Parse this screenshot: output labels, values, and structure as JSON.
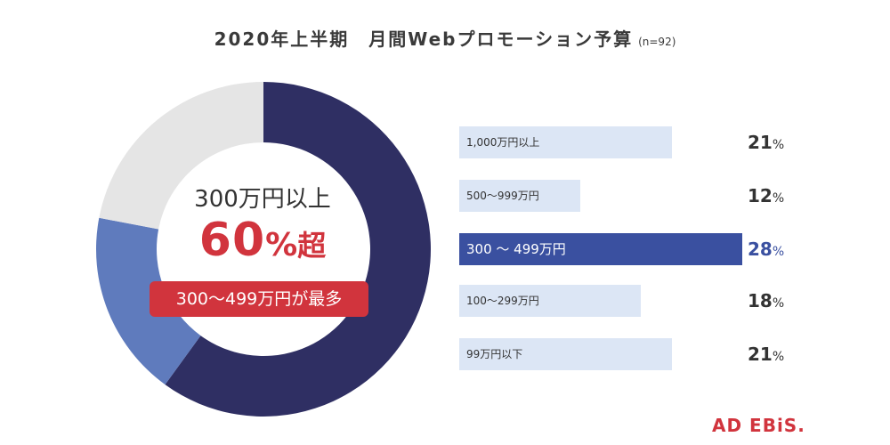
{
  "title": "2020年上半期　月間Webプロモーション予算",
  "title_note": "(n=92)",
  "center": {
    "line1": "300万円以上",
    "big_number": "60",
    "big_pct": "%",
    "big_suffix": "超",
    "badge": "300～499万円が最多"
  },
  "percent_unit": "%",
  "logo": "AD EBiS.",
  "colors": {
    "donut_dark": "#2f2f63",
    "donut_mid": "#5f7bbd",
    "donut_light": "#e5e5e5",
    "bar_light": "#dce6f5",
    "bar_highlight": "#3a50a0",
    "accent_red": "#d1343d"
  },
  "chart_data": [
    {
      "type": "pie",
      "donut": true,
      "slices": [
        {
          "value": 60,
          "color": "#2f2f63"
        },
        {
          "value": 18,
          "color": "#5f7bbd"
        },
        {
          "value": 22,
          "color": "#e5e5e5"
        }
      ]
    },
    {
      "type": "bar",
      "orientation": "horizontal",
      "categories": [
        "1,000万円以上",
        "500～999万円",
        "300 ～ 499万円",
        "100～299万円",
        "99万円以下"
      ],
      "values": [
        21,
        12,
        28,
        18,
        21
      ],
      "highlight_index": 2,
      "xlim": [
        0,
        28
      ]
    }
  ]
}
